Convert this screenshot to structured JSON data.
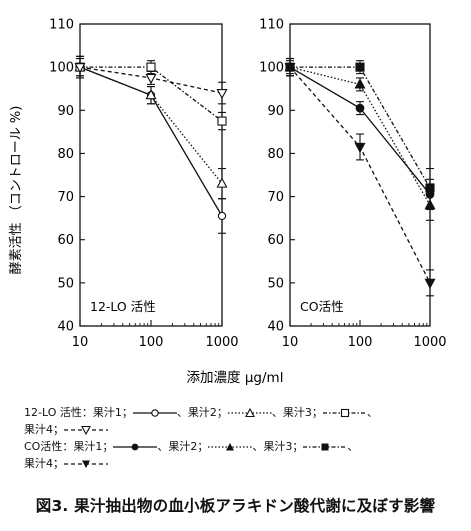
{
  "chart_data": [
    {
      "type": "line",
      "panel_label": "12-LO 活性",
      "x": [
        10,
        100,
        1000
      ],
      "xscale": "log",
      "xlim": [
        10,
        1000
      ],
      "ylim": [
        40,
        110
      ],
      "yticks": [
        40,
        50,
        60,
        70,
        80,
        90,
        100,
        110
      ],
      "xticks": [
        10,
        100,
        1000
      ],
      "ylabel": "酵素活性 （コントロール %)",
      "series": [
        {
          "name": "果汁1",
          "marker": "open-circle",
          "line": "solid",
          "values": [
            100,
            93.5,
            65.5
          ],
          "errors": [
            2.5,
            2.0,
            4.0
          ]
        },
        {
          "name": "果汁2",
          "marker": "open-triangle",
          "line": "dotted",
          "values": [
            100,
            93.5,
            73
          ],
          "errors": [
            2.0,
            2.0,
            3.5
          ]
        },
        {
          "name": "果汁3",
          "marker": "open-square",
          "line": "dash-dot",
          "values": [
            100,
            100,
            87.5
          ],
          "errors": [
            2.5,
            1.5,
            2.0
          ]
        },
        {
          "name": "果汁4",
          "marker": "open-triangle-down",
          "line": "dashed",
          "values": [
            100,
            97.5,
            94
          ],
          "errors": [
            2.0,
            1.5,
            2.5
          ]
        }
      ]
    },
    {
      "type": "line",
      "panel_label": "CO活性",
      "x": [
        10,
        100,
        1000
      ],
      "xscale": "log",
      "xlim": [
        10,
        1000
      ],
      "ylim": [
        40,
        110
      ],
      "yticks": [
        40,
        50,
        60,
        70,
        80,
        90,
        100,
        110
      ],
      "xticks": [
        10,
        100,
        1000
      ],
      "series": [
        {
          "name": "果汁1",
          "marker": "filled-circle",
          "line": "solid",
          "values": [
            100,
            90.5,
            70.5
          ],
          "errors": [
            2.0,
            1.5,
            3.5
          ]
        },
        {
          "name": "果汁2",
          "marker": "filled-triangle",
          "line": "dotted",
          "values": [
            100,
            96,
            68
          ],
          "errors": [
            2.0,
            1.5,
            3.5
          ]
        },
        {
          "name": "果汁3",
          "marker": "filled-square",
          "line": "dash-dot",
          "values": [
            100,
            100,
            72
          ],
          "errors": [
            1.5,
            1.5,
            4.5
          ]
        },
        {
          "name": "果汁4",
          "marker": "filled-triangle-down",
          "line": "dashed",
          "values": [
            100,
            81.5,
            50
          ],
          "errors": [
            2.0,
            3.0,
            3.0
          ]
        }
      ]
    }
  ],
  "xlabel": "添加濃度 μg/ml",
  "legend": {
    "row1": {
      "group": "12-LO 活性：",
      "items": [
        "果汁1；",
        "、果汁2；",
        "、果汁3；"
      ],
      "trail": "、"
    },
    "row2": {
      "items": [
        "果汁4；"
      ]
    },
    "row3": {
      "group": "CO活性：",
      "items": [
        "果汁1；",
        "、果汁2；",
        "、果汁3；"
      ],
      "trail": "、"
    },
    "row4": {
      "items": [
        "果汁4；"
      ]
    }
  },
  "caption": "図3. 果汁抽出物の血小板アラキドン酸代謝に及ぼす影響"
}
